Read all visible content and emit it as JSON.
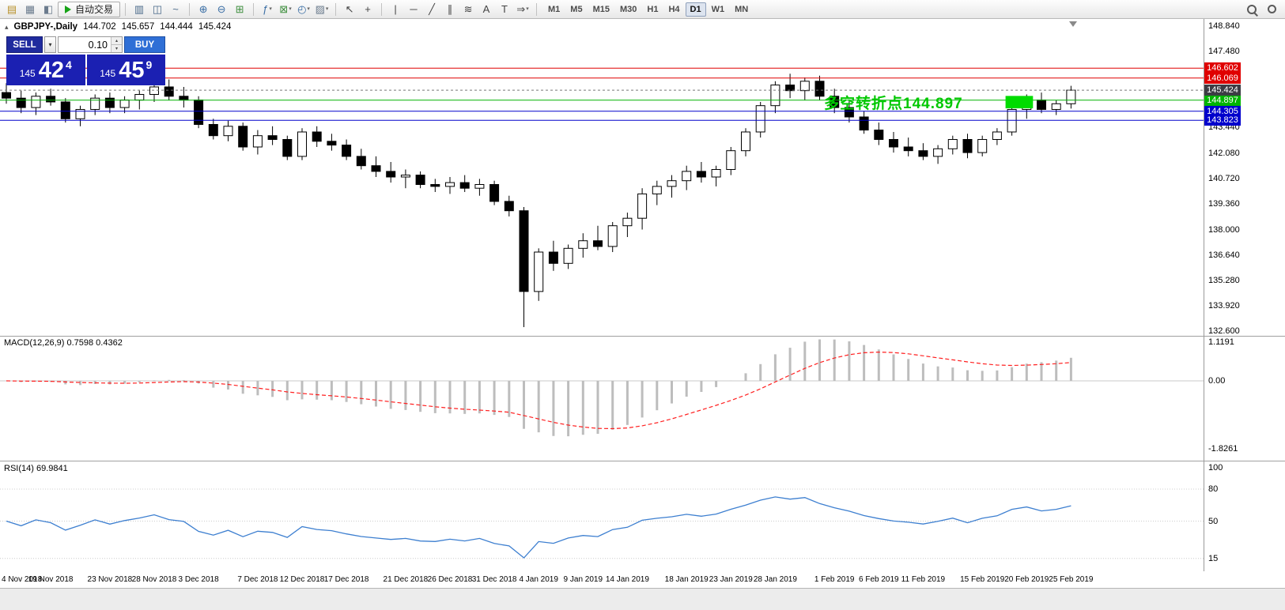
{
  "toolbar": {
    "autotrading_label": "自动交易",
    "timeframes": [
      "M1",
      "M5",
      "M15",
      "M30",
      "H1",
      "H4",
      "D1",
      "W1",
      "MN"
    ],
    "active_timeframe": "D1",
    "items": [
      {
        "type": "icon",
        "name": "new-order-icon",
        "glyph": "▤",
        "color": "#b8912a"
      },
      {
        "type": "icon",
        "name": "chart-window-icon",
        "glyph": "▦",
        "color": "#6b7b8d"
      },
      {
        "type": "icon",
        "name": "data-window-icon",
        "glyph": "◧",
        "color": "#6b7b8d"
      },
      {
        "type": "button",
        "name": "autotrading-button"
      },
      {
        "type": "sep"
      },
      {
        "type": "icon",
        "name": "bar-chart-icon",
        "glyph": "▥",
        "color": "#4a6a8a"
      },
      {
        "type": "icon",
        "name": "candlestick-chart-icon",
        "glyph": "◫",
        "color": "#4a6a8a"
      },
      {
        "type": "icon",
        "name": "line-chart-icon",
        "glyph": "~",
        "color": "#4a6a8a"
      },
      {
        "type": "sep"
      },
      {
        "type": "icon",
        "name": "zoom-in-icon",
        "glyph": "⊕",
        "color": "#3a6ea5"
      },
      {
        "type": "icon",
        "name": "zoom-out-icon",
        "glyph": "⊖",
        "color": "#3a6ea5"
      },
      {
        "type": "icon",
        "name": "tile-windows-icon",
        "glyph": "⊞",
        "color": "#3f8f3f"
      },
      {
        "type": "sep"
      },
      {
        "type": "icon",
        "name": "indicators-icon",
        "glyph": "ƒ",
        "color": "#3a6ea5",
        "dropdown": true
      },
      {
        "type": "icon",
        "name": "add-indicator-icon",
        "glyph": "⊠",
        "color": "#3f8f3f",
        "dropdown": true
      },
      {
        "type": "icon",
        "name": "periods-clock-icon",
        "glyph": "◴",
        "color": "#3a6ea5",
        "dropdown": true
      },
      {
        "type": "icon",
        "name": "templates-icon",
        "glyph": "▨",
        "color": "#6b7b8d",
        "dropdown": true
      },
      {
        "type": "sep"
      },
      {
        "type": "icon",
        "name": "cursor-icon",
        "glyph": "↖",
        "color": "#444444"
      },
      {
        "type": "icon",
        "name": "crosshair-icon",
        "glyph": "+",
        "color": "#444444"
      },
      {
        "type": "sep"
      },
      {
        "type": "icon",
        "name": "vertical-line-icon",
        "glyph": "|",
        "color": "#444444"
      },
      {
        "type": "icon",
        "name": "horizontal-line-icon",
        "glyph": "─",
        "color": "#444444"
      },
      {
        "type": "icon",
        "name": "trendline-icon",
        "glyph": "╱",
        "color": "#444444"
      },
      {
        "type": "icon",
        "name": "equidistant-channel-icon",
        "glyph": "∥",
        "color": "#444444"
      },
      {
        "type": "icon",
        "name": "fibonacci-icon",
        "glyph": "≋",
        "color": "#444444"
      },
      {
        "type": "icon",
        "name": "text-icon",
        "glyph": "A",
        "color": "#444444"
      },
      {
        "type": "icon",
        "name": "text-label-icon",
        "glyph": "T",
        "color": "#444444"
      },
      {
        "type": "icon",
        "name": "arrows-icon",
        "glyph": "⇒",
        "color": "#444444",
        "dropdown": true
      },
      {
        "type": "sep"
      },
      {
        "type": "timeframes"
      }
    ]
  },
  "symbol_info": {
    "symbol": "GBPJPY-,Daily",
    "open": "144.702",
    "high": "145.657",
    "low": "144.444",
    "close": "145.424"
  },
  "trade_panel": {
    "sell_label": "SELL",
    "buy_label": "BUY",
    "volume": "0.10",
    "sell_price_small": "145",
    "sell_price_big": "42",
    "sell_price_sup": "4",
    "buy_price_small": "145",
    "buy_price_big": "45",
    "buy_price_sup": "9"
  },
  "annotation": {
    "text": "多空转折点144.897",
    "color": "#00c800"
  },
  "chart_data": {
    "type": "candlestick",
    "symbol": "GBPJPY",
    "period": "Daily",
    "price_axis": {
      "min": 132.38,
      "max": 149.05,
      "ticks": [
        "148.840",
        "147.480",
        "146.120",
        "144.760",
        "143.440",
        "142.080",
        "140.720",
        "139.360",
        "138.000",
        "136.640",
        "135.280",
        "133.920",
        "132.600"
      ]
    },
    "candles": [
      [
        145.3,
        145.8,
        144.7,
        145.0
      ],
      [
        145.0,
        145.4,
        144.2,
        144.5
      ],
      [
        144.5,
        145.3,
        144.1,
        145.1
      ],
      [
        145.1,
        145.5,
        144.6,
        144.8
      ],
      [
        144.8,
        145.0,
        143.7,
        143.9
      ],
      [
        143.9,
        144.6,
        143.5,
        144.4
      ],
      [
        144.4,
        145.2,
        144.1,
        145.0
      ],
      [
        145.0,
        145.3,
        144.2,
        144.5
      ],
      [
        144.5,
        145.1,
        144.2,
        144.9
      ],
      [
        144.9,
        145.4,
        144.4,
        145.2
      ],
      [
        145.2,
        145.9,
        144.8,
        145.6
      ],
      [
        145.6,
        146.0,
        144.9,
        145.1
      ],
      [
        145.1,
        145.6,
        144.5,
        144.9
      ],
      [
        144.9,
        145.1,
        143.4,
        143.6
      ],
      [
        143.6,
        143.9,
        142.8,
        143.0
      ],
      [
        143.0,
        143.8,
        142.7,
        143.5
      ],
      [
        143.5,
        143.7,
        142.2,
        142.4
      ],
      [
        142.4,
        143.3,
        142.0,
        143.0
      ],
      [
        143.0,
        143.5,
        142.5,
        142.8
      ],
      [
        142.8,
        143.0,
        141.7,
        141.9
      ],
      [
        141.9,
        143.4,
        141.7,
        143.2
      ],
      [
        143.2,
        143.5,
        142.4,
        142.7
      ],
      [
        142.7,
        143.1,
        142.2,
        142.5
      ],
      [
        142.5,
        142.8,
        141.7,
        141.9
      ],
      [
        141.9,
        142.3,
        141.2,
        141.4
      ],
      [
        141.4,
        141.9,
        140.8,
        141.1
      ],
      [
        141.1,
        141.6,
        140.5,
        140.8
      ],
      [
        140.8,
        141.2,
        140.2,
        140.9
      ],
      [
        140.9,
        141.1,
        140.2,
        140.4
      ],
      [
        140.4,
        140.7,
        140.0,
        140.3
      ],
      [
        140.3,
        140.8,
        139.9,
        140.5
      ],
      [
        140.5,
        140.9,
        140.0,
        140.2
      ],
      [
        140.2,
        140.7,
        139.8,
        140.4
      ],
      [
        140.4,
        140.6,
        139.3,
        139.5
      ],
      [
        139.5,
        139.8,
        138.7,
        139.0
      ],
      [
        139.0,
        139.2,
        132.8,
        134.7
      ],
      [
        134.7,
        137.0,
        134.2,
        136.8
      ],
      [
        136.8,
        137.4,
        135.8,
        136.2
      ],
      [
        136.2,
        137.2,
        135.9,
        137.0
      ],
      [
        137.0,
        137.8,
        136.5,
        137.4
      ],
      [
        137.4,
        138.2,
        136.9,
        137.1
      ],
      [
        137.1,
        138.4,
        136.8,
        138.2
      ],
      [
        138.2,
        138.9,
        137.6,
        138.6
      ],
      [
        138.6,
        140.2,
        138.0,
        139.9
      ],
      [
        139.9,
        140.6,
        139.3,
        140.3
      ],
      [
        140.3,
        140.9,
        139.7,
        140.6
      ],
      [
        140.6,
        141.4,
        140.1,
        141.1
      ],
      [
        141.1,
        141.6,
        140.5,
        140.8
      ],
      [
        140.8,
        141.4,
        140.3,
        141.2
      ],
      [
        141.2,
        142.4,
        140.9,
        142.2
      ],
      [
        142.2,
        143.4,
        141.9,
        143.2
      ],
      [
        143.2,
        144.8,
        142.9,
        144.6
      ],
      [
        144.6,
        145.9,
        144.2,
        145.7
      ],
      [
        145.7,
        146.3,
        145.0,
        145.4
      ],
      [
        145.4,
        146.1,
        144.9,
        145.9
      ],
      [
        145.9,
        146.2,
        144.9,
        145.1
      ],
      [
        145.1,
        145.5,
        144.2,
        144.5
      ],
      [
        144.5,
        144.9,
        143.7,
        144.0
      ],
      [
        144.0,
        144.3,
        143.1,
        143.3
      ],
      [
        143.3,
        143.7,
        142.5,
        142.8
      ],
      [
        142.8,
        143.2,
        142.1,
        142.4
      ],
      [
        142.4,
        142.9,
        141.9,
        142.2
      ],
      [
        142.2,
        142.6,
        141.7,
        141.9
      ],
      [
        141.9,
        142.5,
        141.5,
        142.3
      ],
      [
        142.3,
        143.0,
        142.0,
        142.8
      ],
      [
        142.8,
        143.1,
        141.8,
        142.1
      ],
      [
        142.1,
        143.0,
        141.9,
        142.8
      ],
      [
        142.8,
        143.4,
        142.5,
        143.2
      ],
      [
        143.2,
        144.6,
        143.0,
        144.4
      ],
      [
        144.4,
        145.2,
        143.9,
        144.9
      ],
      [
        144.9,
        145.3,
        144.2,
        144.4
      ],
      [
        144.4,
        144.9,
        144.1,
        144.7
      ],
      [
        144.702,
        145.657,
        144.444,
        145.424
      ]
    ],
    "date_labels": [
      {
        "text": "4 Nov 2018",
        "index": 0
      },
      {
        "text": "19 Nov 2018",
        "index": 3
      },
      {
        "text": "23 Nov 2018",
        "index": 7
      },
      {
        "text": "28 Nov 2018",
        "index": 10
      },
      {
        "text": "3 Dec 2018",
        "index": 13
      },
      {
        "text": "7 Dec 2018",
        "index": 17
      },
      {
        "text": "12 Dec 2018",
        "index": 20
      },
      {
        "text": "17 Dec 2018",
        "index": 23
      },
      {
        "text": "21 Dec 2018",
        "index": 27
      },
      {
        "text": "26 Dec 2018",
        "index": 30
      },
      {
        "text": "31 Dec 2018",
        "index": 33
      },
      {
        "text": "4 Jan 2019",
        "index": 36
      },
      {
        "text": "9 Jan 2019",
        "index": 39
      },
      {
        "text": "14 Jan 2019",
        "index": 42
      },
      {
        "text": "18 Jan 2019",
        "index": 46
      },
      {
        "text": "23 Jan 2019",
        "index": 49
      },
      {
        "text": "28 Jan 2019",
        "index": 52
      },
      {
        "text": "1 Feb 2019",
        "index": 56
      },
      {
        "text": "6 Feb 2019",
        "index": 59
      },
      {
        "text": "11 Feb 2019",
        "index": 62
      },
      {
        "text": "15 Feb 2019",
        "index": 66
      },
      {
        "text": "20 Feb 2019",
        "index": 69
      },
      {
        "text": "25 Feb 2019",
        "index": 72
      }
    ],
    "hlines": [
      {
        "price": 146.602,
        "label": "146.602",
        "color": "#e00000"
      },
      {
        "price": 146.069,
        "label": "146.069",
        "color": "#e00000"
      },
      {
        "price": 144.897,
        "label": "144.897",
        "color": "#00b400"
      },
      {
        "price": 144.305,
        "label": "144.305",
        "color": "#0000cc"
      },
      {
        "price": 143.823,
        "label": "143.823",
        "color": "#0000cc"
      }
    ],
    "current_price": {
      "price": 145.424,
      "label": "145.424",
      "tag_color": "#3c3c44"
    },
    "rect_object": {
      "from_index": 68,
      "to_index": 69,
      "price_top": 145.12,
      "price_bottom": 144.46,
      "color": "#00dc00"
    },
    "indicators": {
      "macd": {
        "name": "MACD(12,26,9)",
        "values": "0.7598 0.4362",
        "fast": 12,
        "slow": 26,
        "signal": 9,
        "axis_ticks": [
          "1.1191",
          "0.00",
          "-1.8261"
        ],
        "histogram_color": "#bdbdbd",
        "signal_color": "#ff2020"
      },
      "rsi": {
        "name": "RSI(14)",
        "value": "69.9841",
        "period": 14,
        "axis_ticks": [
          "100",
          "80",
          "50",
          "15"
        ],
        "levels": [
          80,
          50,
          15
        ],
        "line_color": "#3d7fd0"
      }
    }
  }
}
